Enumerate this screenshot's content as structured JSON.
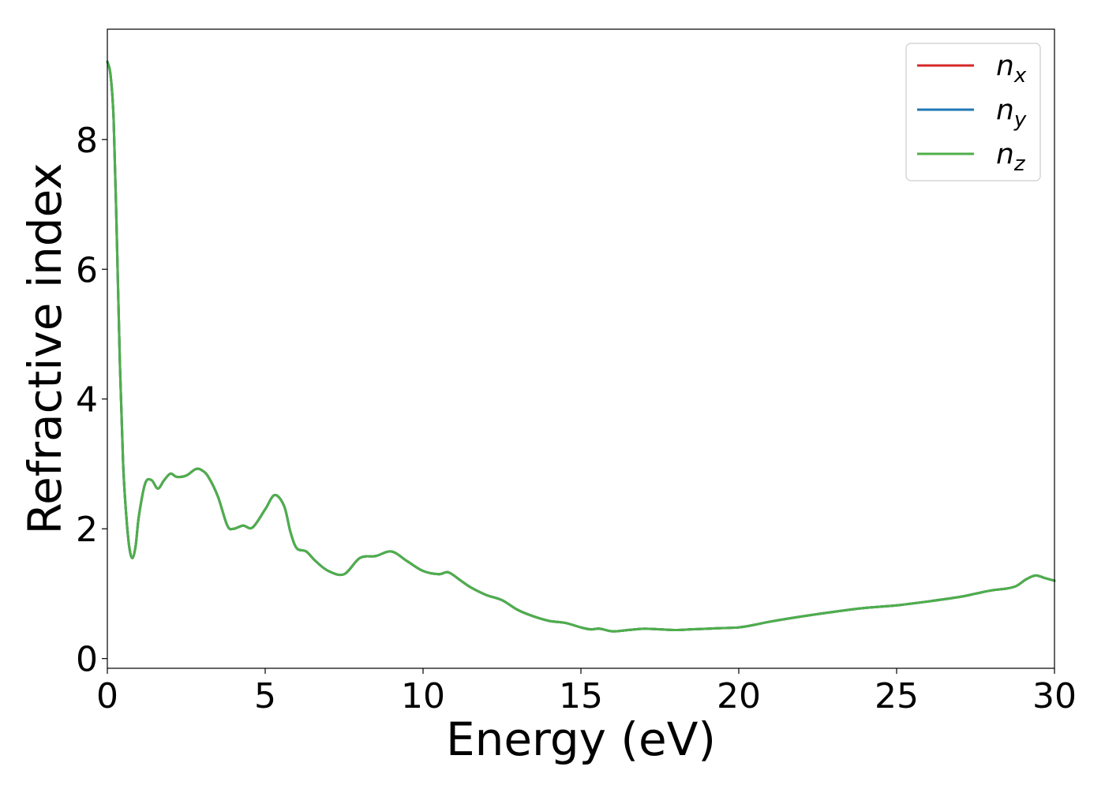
{
  "chart_data": {
    "type": "line",
    "xlabel": "Energy (eV)",
    "ylabel": "Refractive index",
    "xlim": [
      0,
      30
    ],
    "ylim": [
      -0.15,
      9.7
    ],
    "xticks": [
      0,
      5,
      10,
      15,
      20,
      25,
      30
    ],
    "yticks": [
      0,
      2,
      4,
      6,
      8
    ],
    "grid": false,
    "legend_position": "top-right",
    "x": [
      0,
      0.1,
      0.2,
      0.3,
      0.4,
      0.5,
      0.6,
      0.7,
      0.8,
      0.9,
      1.0,
      1.2,
      1.4,
      1.6,
      1.8,
      2.0,
      2.2,
      2.5,
      2.8,
      3.0,
      3.2,
      3.5,
      3.8,
      4.0,
      4.3,
      4.6,
      5.0,
      5.3,
      5.6,
      5.8,
      6.0,
      6.3,
      6.6,
      7.0,
      7.5,
      8.0,
      8.5,
      9.0,
      9.5,
      10.0,
      10.5,
      10.8,
      11.2,
      11.5,
      12.0,
      12.5,
      13.0,
      13.5,
      14.0,
      14.5,
      15.0,
      15.3,
      15.6,
      16.0,
      16.5,
      17.0,
      17.5,
      18.0,
      18.5,
      19.0,
      19.5,
      20.0,
      20.5,
      21.0,
      22.0,
      23.0,
      24.0,
      25.0,
      26.0,
      27.0,
      27.5,
      28.0,
      28.5,
      28.8,
      29.1,
      29.4,
      29.7,
      30.0
    ],
    "series": [
      {
        "name": "x",
        "color": "#d62728",
        "values": [
          9.2,
          9.0,
          8.3,
          6.5,
          4.5,
          3.0,
          2.2,
          1.7,
          1.55,
          1.75,
          2.2,
          2.7,
          2.75,
          2.62,
          2.75,
          2.85,
          2.8,
          2.82,
          2.92,
          2.9,
          2.8,
          2.5,
          2.05,
          2.0,
          2.05,
          2.02,
          2.3,
          2.52,
          2.35,
          1.95,
          1.7,
          1.65,
          1.5,
          1.35,
          1.3,
          1.55,
          1.58,
          1.65,
          1.5,
          1.35,
          1.3,
          1.33,
          1.2,
          1.1,
          0.98,
          0.9,
          0.75,
          0.65,
          0.58,
          0.55,
          0.48,
          0.45,
          0.46,
          0.42,
          0.44,
          0.46,
          0.45,
          0.44,
          0.45,
          0.46,
          0.47,
          0.48,
          0.52,
          0.57,
          0.65,
          0.72,
          0.78,
          0.82,
          0.88,
          0.95,
          1.0,
          1.05,
          1.08,
          1.12,
          1.22,
          1.28,
          1.24,
          1.2
        ]
      },
      {
        "name": "y",
        "color": "#1f77b4",
        "values": [
          9.2,
          9.0,
          8.3,
          6.5,
          4.5,
          3.0,
          2.2,
          1.7,
          1.55,
          1.75,
          2.2,
          2.7,
          2.75,
          2.62,
          2.75,
          2.85,
          2.8,
          2.82,
          2.92,
          2.9,
          2.8,
          2.5,
          2.05,
          2.0,
          2.05,
          2.02,
          2.3,
          2.52,
          2.35,
          1.95,
          1.7,
          1.65,
          1.5,
          1.35,
          1.3,
          1.55,
          1.58,
          1.65,
          1.5,
          1.35,
          1.3,
          1.33,
          1.2,
          1.1,
          0.98,
          0.9,
          0.75,
          0.65,
          0.58,
          0.55,
          0.48,
          0.45,
          0.46,
          0.42,
          0.44,
          0.46,
          0.45,
          0.44,
          0.45,
          0.46,
          0.47,
          0.48,
          0.52,
          0.57,
          0.65,
          0.72,
          0.78,
          0.82,
          0.88,
          0.95,
          1.0,
          1.05,
          1.08,
          1.12,
          1.22,
          1.28,
          1.24,
          1.2
        ]
      },
      {
        "name": "z",
        "color": "#4daf4a",
        "values": [
          9.2,
          9.0,
          8.3,
          6.5,
          4.5,
          3.0,
          2.2,
          1.7,
          1.55,
          1.75,
          2.2,
          2.7,
          2.75,
          2.62,
          2.75,
          2.85,
          2.8,
          2.82,
          2.92,
          2.9,
          2.8,
          2.5,
          2.05,
          2.0,
          2.05,
          2.02,
          2.3,
          2.52,
          2.35,
          1.95,
          1.7,
          1.65,
          1.5,
          1.35,
          1.3,
          1.55,
          1.58,
          1.65,
          1.5,
          1.35,
          1.3,
          1.33,
          1.2,
          1.1,
          0.98,
          0.9,
          0.75,
          0.65,
          0.58,
          0.55,
          0.48,
          0.45,
          0.46,
          0.42,
          0.44,
          0.46,
          0.45,
          0.44,
          0.45,
          0.46,
          0.47,
          0.48,
          0.52,
          0.57,
          0.65,
          0.72,
          0.78,
          0.82,
          0.88,
          0.95,
          1.0,
          1.05,
          1.08,
          1.12,
          1.22,
          1.28,
          1.24,
          1.2
        ]
      }
    ],
    "legend": [
      {
        "base": "n",
        "sub": "x",
        "color": "#d62728"
      },
      {
        "base": "n",
        "sub": "y",
        "color": "#1f77b4"
      },
      {
        "base": "n",
        "sub": "z",
        "color": "#4daf4a"
      }
    ]
  }
}
